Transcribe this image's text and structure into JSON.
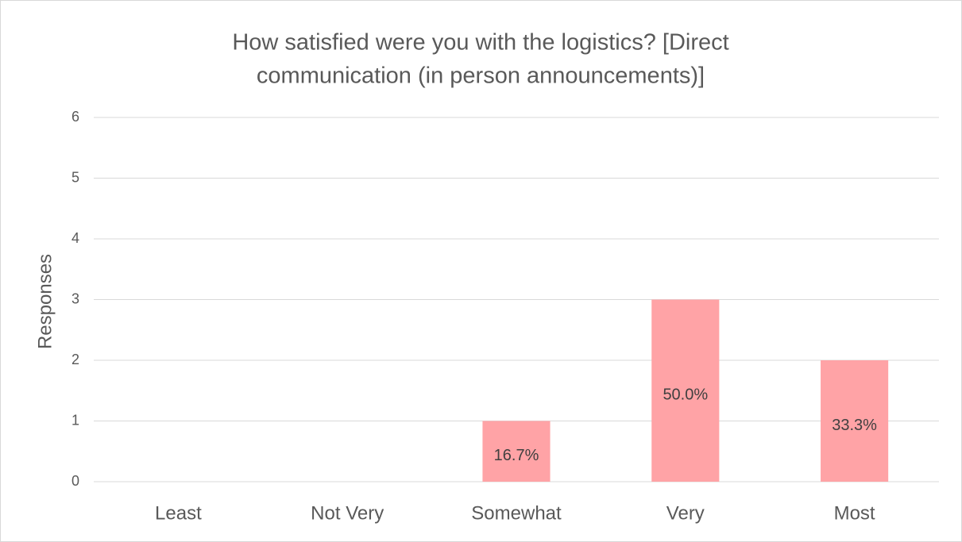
{
  "chart_data": {
    "type": "bar",
    "title": [
      "How satisfied were you with the logistics? [Direct",
      "communication (in person announcements)]"
    ],
    "y_label": "Responses",
    "categories": [
      "Least",
      "Not Very",
      "Somewhat",
      "Very",
      "Most"
    ],
    "values": [
      0,
      0,
      1,
      3,
      2
    ],
    "data_labels": [
      null,
      null,
      "16.7%",
      "50.0%",
      "33.3%"
    ],
    "color": "#ffa3a6",
    "ylim": [
      0,
      6
    ],
    "yticks": [
      0,
      1,
      2,
      3,
      4,
      5,
      6
    ],
    "grid": true
  }
}
